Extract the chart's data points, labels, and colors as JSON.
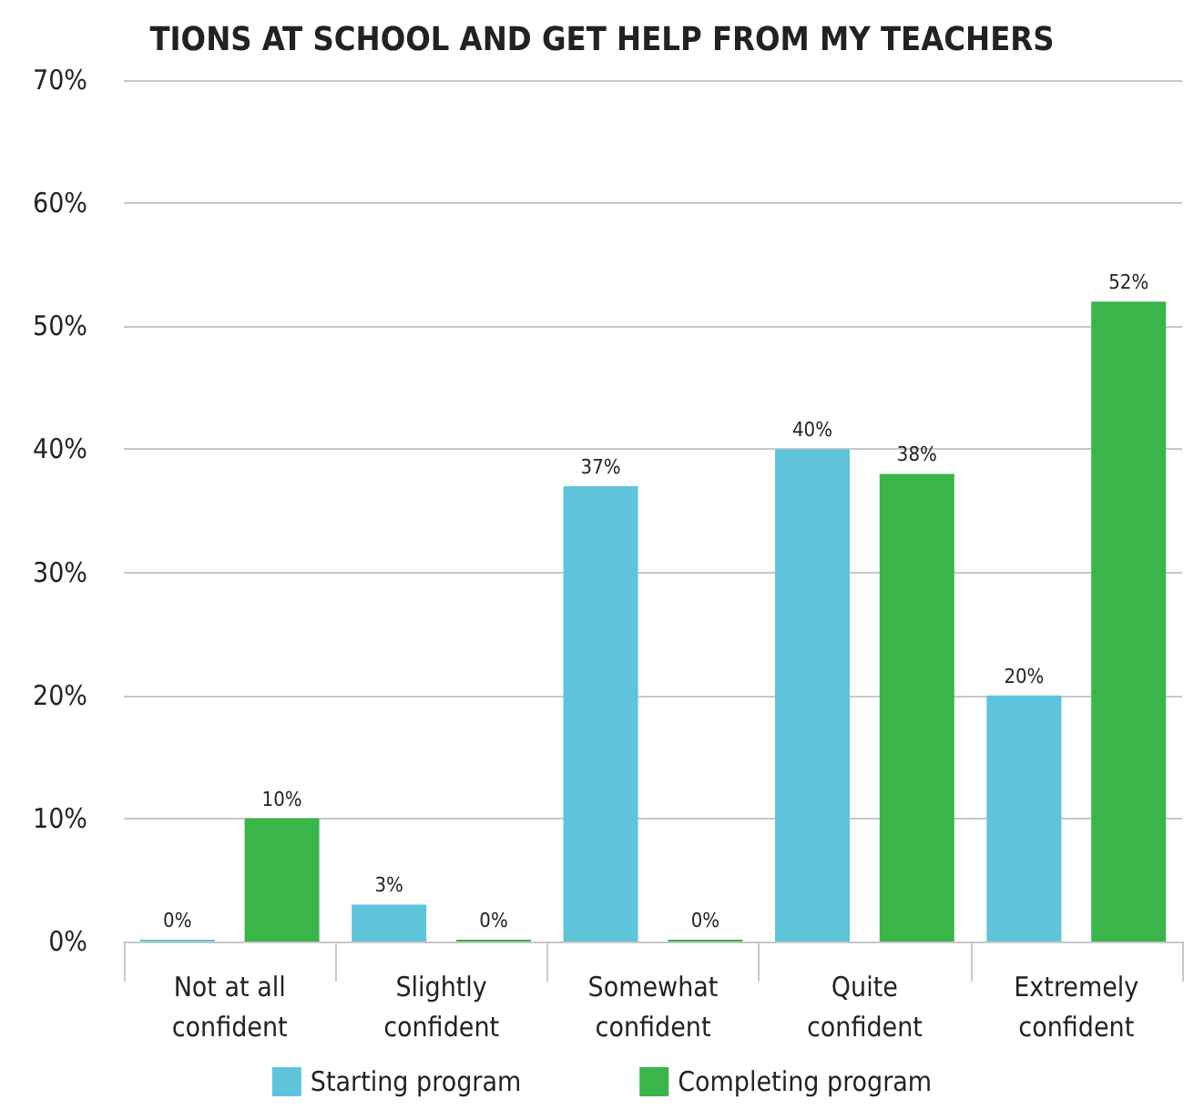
{
  "chart_data": {
    "type": "bar",
    "title": "TIONS AT SCHOOL AND GET HELP FROM MY TEACHERS",
    "categories": [
      "Not at all\nconfident",
      "Slightly\nconfident",
      "Somewhat\nconfident",
      "Quite\nconfident",
      "Extremely\nconfident"
    ],
    "series": [
      {
        "name": "Starting program",
        "color": "#5ec4dc",
        "values": [
          0,
          3,
          37,
          40,
          20
        ],
        "value_labels": [
          "0%",
          "3%",
          "37%",
          "40%",
          "20%"
        ]
      },
      {
        "name": "Completing program",
        "color": "#39b54a",
        "values": [
          10,
          0,
          0,
          38,
          52
        ],
        "value_labels": [
          "10%",
          "0%",
          "0%",
          "38%",
          "52%"
        ]
      }
    ],
    "ylim": [
      0,
      70
    ],
    "yticks": [
      {
        "value": 0,
        "label": "0%"
      },
      {
        "value": 10,
        "label": "10%"
      },
      {
        "value": 20,
        "label": "20%"
      },
      {
        "value": 30,
        "label": "30%"
      },
      {
        "value": 40,
        "label": "40%"
      },
      {
        "value": 50,
        "label": "50%"
      },
      {
        "value": 60,
        "label": "60%"
      },
      {
        "value": 70,
        "label": "70%"
      }
    ],
    "grid": "y",
    "legend": "bottom"
  }
}
